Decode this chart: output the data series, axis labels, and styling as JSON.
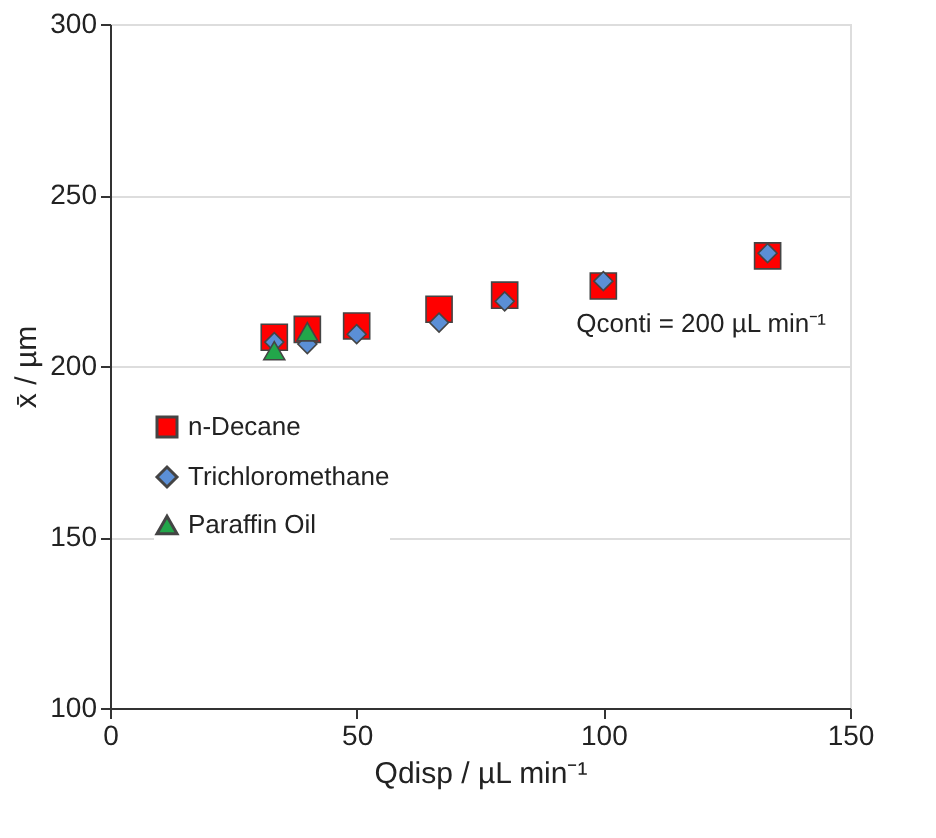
{
  "chart_data": {
    "type": "scatter",
    "xlabel": "Qdisp / µL min⁻¹",
    "ylabel": "x̄ / µm",
    "xlim": [
      0,
      150
    ],
    "xticks": [
      0,
      50,
      100,
      150
    ],
    "ylim": [
      100,
      300
    ],
    "yticks": [
      100,
      150,
      200,
      250,
      300
    ],
    "grid": "y",
    "legend": "left",
    "annotations": [
      "Qconti = 200 µL min⁻¹"
    ],
    "series": [
      {
        "name": "n-Decane",
        "color": "#ff0000",
        "marker": "square",
        "x": [
          33.3,
          40,
          50,
          66.7,
          80,
          100,
          133.3
        ],
        "values": [
          208.4,
          210.7,
          211.7,
          216.6,
          220.7,
          223.4,
          232.2
        ]
      },
      {
        "name": "Trichloromethane",
        "color": "#5b8fd6",
        "marker": "diamond",
        "x": [
          33.3,
          40,
          50,
          66.7,
          80,
          100,
          133.3
        ],
        "values": [
          207,
          206.4,
          209.3,
          212.7,
          218.9,
          224.8,
          233
        ]
      },
      {
        "name": "Paraffin Oil",
        "color": "#22a64a",
        "marker": "triangle",
        "x": [
          33.3,
          40
        ],
        "values": [
          204.5,
          210
        ]
      }
    ]
  }
}
